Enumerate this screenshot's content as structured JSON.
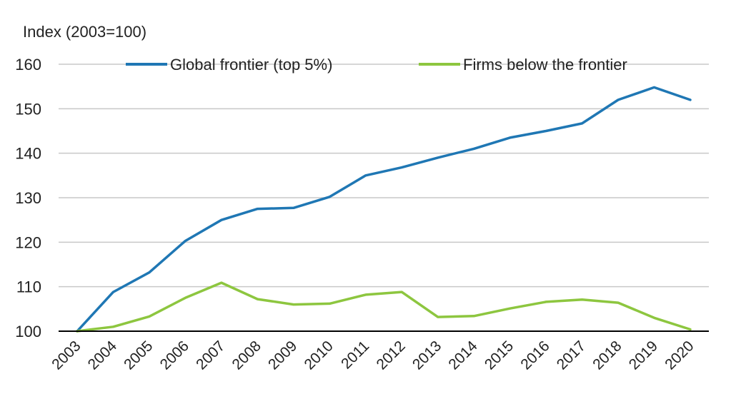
{
  "chart_data": {
    "type": "line",
    "ylabel": "Index (2003=100)",
    "ylim": [
      100,
      160
    ],
    "yticks": [
      100,
      110,
      120,
      130,
      140,
      150,
      160
    ],
    "grid": true,
    "legend_position": "top",
    "categories": [
      "2003",
      "2004",
      "2005",
      "2006",
      "2007",
      "2008",
      "2009",
      "2010",
      "2011",
      "2012",
      "2013",
      "2014",
      "2015",
      "2016",
      "2017",
      "2018",
      "2019",
      "2020"
    ],
    "series": [
      {
        "name": "Global frontier (top 5%)",
        "color": "#1f77b4",
        "values": [
          100,
          108.8,
          113.2,
          120.3,
          125.0,
          127.5,
          127.7,
          130.2,
          135.0,
          136.8,
          139.0,
          141.0,
          143.5,
          145.0,
          146.7,
          152.0,
          154.8,
          152.0
        ]
      },
      {
        "name": "Firms below the frontier",
        "color": "#8dc63f",
        "values": [
          100,
          101.0,
          103.3,
          107.5,
          110.9,
          107.2,
          106.0,
          106.2,
          108.2,
          108.8,
          103.2,
          103.4,
          105.1,
          106.6,
          107.1,
          106.4,
          103.0,
          100.4
        ]
      }
    ]
  }
}
